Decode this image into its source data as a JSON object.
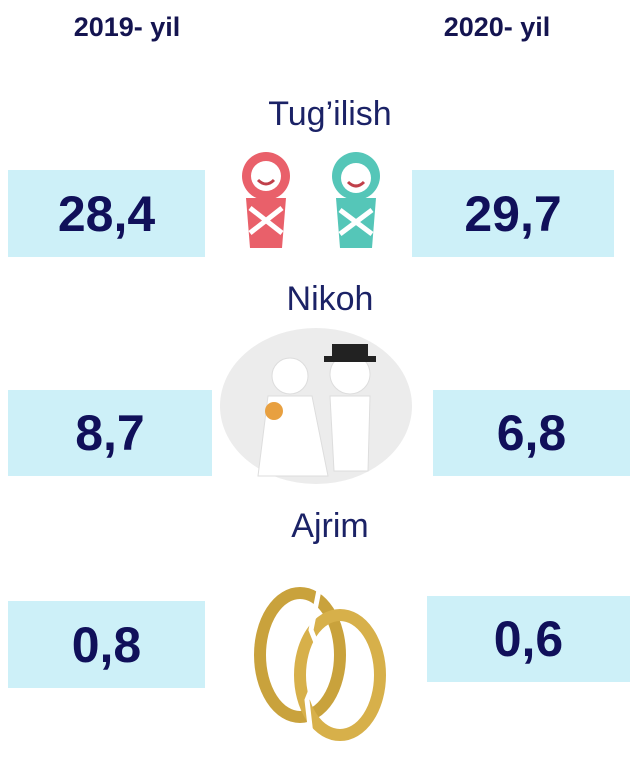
{
  "header": {
    "left": "2019- yil",
    "right": "2020- yil"
  },
  "sections": [
    {
      "label": "Tug’ilish",
      "left": "28,4",
      "right": "29,7"
    },
    {
      "label": "Nikoh",
      "left": "8,7",
      "right": "6,8"
    },
    {
      "label": "Ajrim",
      "left": "0,8",
      "right": "0,6"
    }
  ]
}
